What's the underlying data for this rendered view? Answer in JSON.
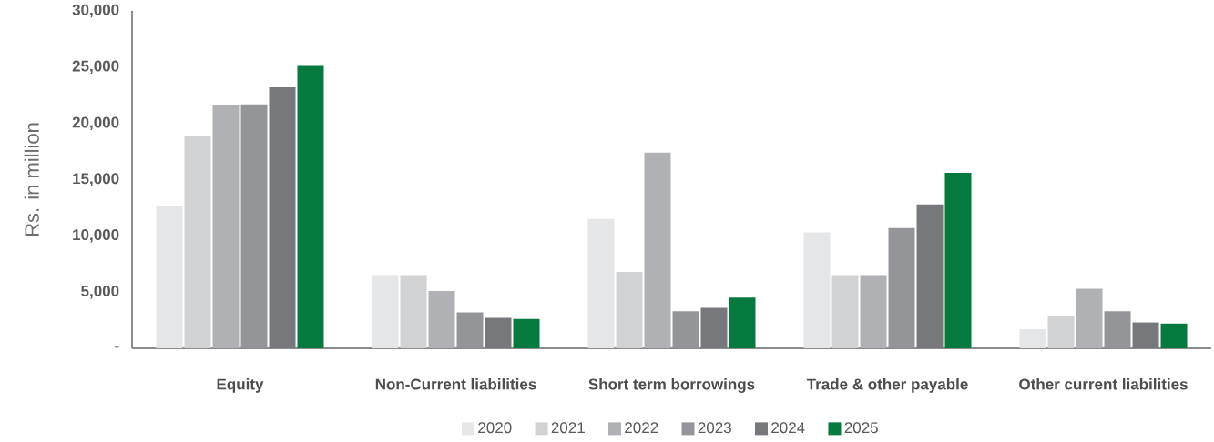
{
  "chart_data": {
    "type": "bar",
    "ylabel": "Rs.  in million",
    "categories": [
      "Equity",
      "Non-Current liabilities",
      "Short term borrowings",
      "Trade & other payable",
      "Other current liabilities"
    ],
    "series": [
      {
        "name": "2020",
        "color": "#e5e6e7",
        "values": [
          12700,
          6500,
          11500,
          10300,
          1700
        ]
      },
      {
        "name": "2021",
        "color": "#d1d2d4",
        "values": [
          18900,
          6500,
          6800,
          6500,
          2900
        ]
      },
      {
        "name": "2022",
        "color": "#afb1b4",
        "values": [
          21600,
          5100,
          17400,
          6500,
          5300
        ]
      },
      {
        "name": "2023",
        "color": "#939598",
        "values": [
          21700,
          3200,
          3300,
          10700,
          3300
        ]
      },
      {
        "name": "2024",
        "color": "#77787b",
        "values": [
          23200,
          2700,
          3600,
          12800,
          2300
        ]
      },
      {
        "name": "2025",
        "color": "#067a3e",
        "values": [
          25100,
          2600,
          4500,
          15600,
          2200
        ]
      }
    ],
    "ylim": [
      0,
      30000
    ],
    "yticks": [
      {
        "value": 0,
        "label": "-"
      },
      {
        "value": 5000,
        "label": "5,000"
      },
      {
        "value": 10000,
        "label": "10,000"
      },
      {
        "value": 15000,
        "label": "15,000"
      },
      {
        "value": 20000,
        "label": "20,000"
      },
      {
        "value": 25000,
        "label": "25,000"
      },
      {
        "value": 30000,
        "label": "30,000"
      }
    ],
    "legend": "bottom"
  }
}
